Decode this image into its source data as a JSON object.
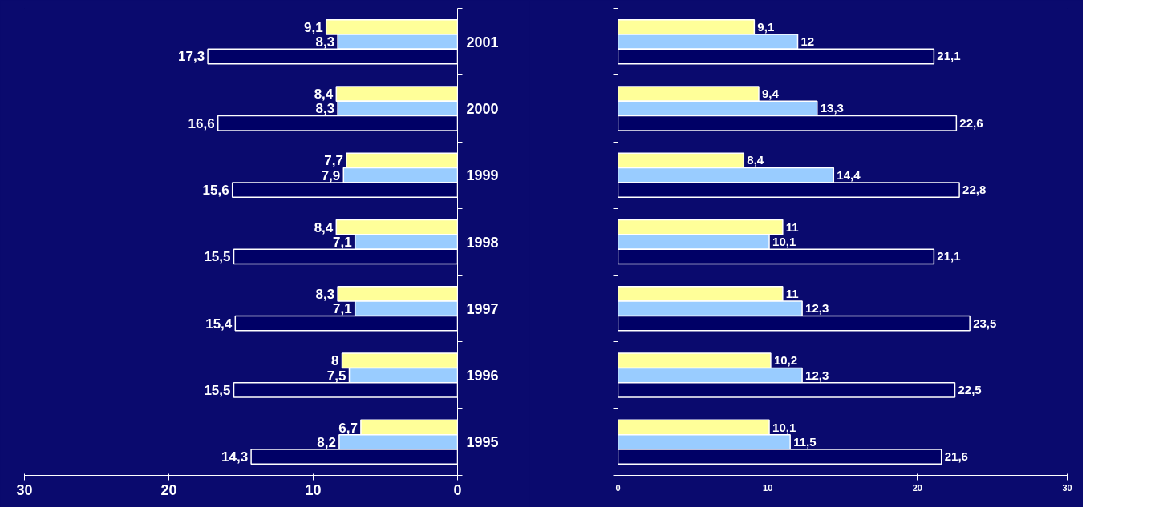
{
  "chart_data": [
    {
      "type": "bar",
      "orientation": "horizontal",
      "categories": [
        "2001",
        "2000",
        "1999",
        "1998",
        "1997",
        "1996",
        "1995"
      ],
      "xlim": [
        30,
        0
      ],
      "xticks": [
        30,
        20,
        10,
        0
      ],
      "series": [
        {
          "color": "#ffff99",
          "values": [
            9.1,
            8.4,
            7.7,
            8.4,
            8.3,
            8,
            6.7
          ],
          "value_labels": [
            "9,1",
            "8,4",
            "7,7",
            "8,4",
            "8,3",
            "8",
            "6,7"
          ]
        },
        {
          "color": "#99ccff",
          "values": [
            8.3,
            8.3,
            7.9,
            7.1,
            7.1,
            7.5,
            8.2
          ],
          "value_labels": [
            "8,3",
            "8,3",
            "7,9",
            "7,1",
            "7,1",
            "7,5",
            "8,2"
          ]
        },
        {
          "color": "#000066",
          "values": [
            17.3,
            16.6,
            15.6,
            15.5,
            15.4,
            15.5,
            14.3
          ],
          "value_labels": [
            "17,3",
            "16,6",
            "15,6",
            "15,5",
            "15,4",
            "15,5",
            "14,3"
          ]
        }
      ]
    },
    {
      "type": "bar",
      "orientation": "horizontal",
      "categories": [
        null,
        null,
        null,
        null,
        null,
        null,
        null
      ],
      "xlim": [
        0,
        30
      ],
      "xticks": [
        0,
        10,
        20,
        30
      ],
      "tick_labels": "x",
      "series": [
        {
          "color": "#ffff99",
          "values": [
            9.1,
            9.4,
            8.4,
            11,
            11,
            10.2,
            10.1
          ],
          "value_labels": [
            "9,1",
            "9,4",
            "8,4",
            "11",
            "11",
            "10,2",
            "10,1"
          ]
        },
        {
          "color": "#99ccff",
          "values": [
            12,
            13.3,
            14.4,
            10.1,
            12.3,
            12.3,
            11.5
          ],
          "value_labels": [
            "12",
            "13,3",
            "14,4",
            "10,1",
            "12,3",
            "12,3",
            "11,5"
          ]
        },
        {
          "color": "#000066",
          "values": [
            21.1,
            22.6,
            22.8,
            21.1,
            23.5,
            22.5,
            21.6
          ],
          "value_labels": [
            "21,1",
            "22,6",
            "22,8",
            "21,1",
            "23,5",
            "22,5",
            "21,6"
          ]
        }
      ]
    }
  ]
}
